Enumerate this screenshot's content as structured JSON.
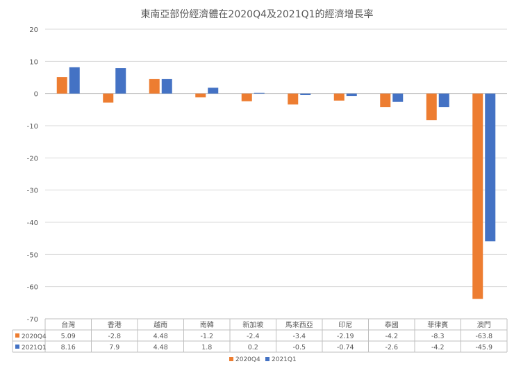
{
  "chart_data": {
    "type": "bar",
    "title": "東南亞部份經濟體在2020Q4及2021Q1的經濟增長率",
    "categories": [
      "台灣",
      "香港",
      "越南",
      "南韓",
      "新加坡",
      "馬來西亞",
      "印尼",
      "泰國",
      "菲律賓",
      "澳門"
    ],
    "series": [
      {
        "name": "2020Q4",
        "color": "#ED7D31",
        "values": [
          5.09,
          -2.8,
          4.48,
          -1.2,
          -2.4,
          -3.4,
          -2.19,
          -4.2,
          -8.3,
          -63.8
        ],
        "labels": [
          "5.09",
          "-2.8",
          "4.48",
          "-1.2",
          "-2.4",
          "-3.4",
          "-2.19",
          "-4.2",
          "-8.3",
          "-63.8"
        ]
      },
      {
        "name": "2021Q1",
        "color": "#4472C4",
        "values": [
          8.16,
          7.9,
          4.48,
          1.8,
          0.2,
          -0.5,
          -0.74,
          -2.6,
          -4.2,
          -45.9
        ],
        "labels": [
          "8.16",
          "7.9",
          "4.48",
          "1.8",
          "0.2",
          "-0.5",
          "-0.74",
          "-2.6",
          "-4.2",
          "-45.9"
        ]
      }
    ],
    "ylim": [
      -70,
      20
    ],
    "yticks": [
      20,
      10,
      0,
      -10,
      -20,
      -30,
      -40,
      -50,
      -60,
      -70
    ],
    "grid": true,
    "data_table": true,
    "legend_position": "bottom"
  }
}
